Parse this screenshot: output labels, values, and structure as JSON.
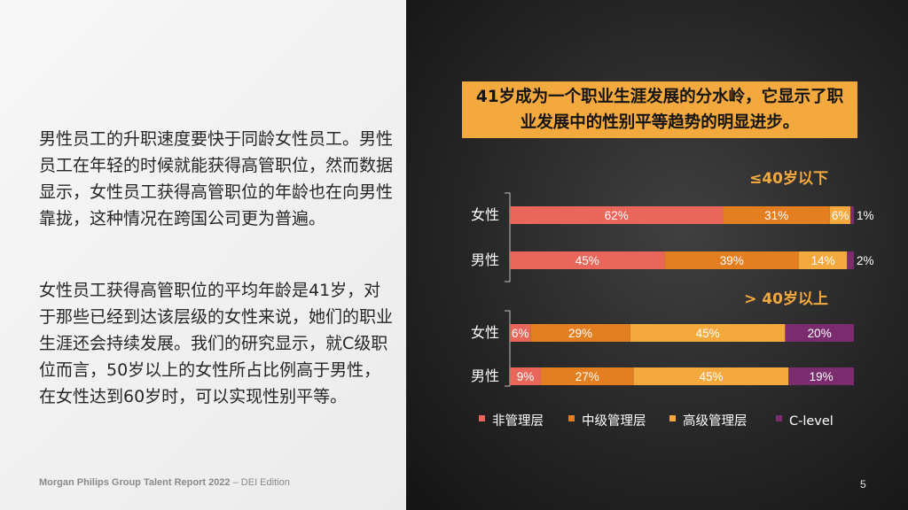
{
  "left": {
    "paragraph1": "男性员工的升职速度要快于同龄女性员工。男性员工在年轻的时候就能获得高管职位，然而数据显示，女性员工获得高管职位的年龄也在向男性靠拢，这种情况在跨国公司更为普遍。",
    "paragraph2": "女性员工获得高管职位的平均年龄是41岁，对于那些已经到达该层级的女性来说，她们的职业生涯还会持续发展。我们的研究显示，就C级职位而言，50岁以上的女性所占比例高于男性，在女性达到60岁时，可以实现性别平等。",
    "footer_bold": "Morgan Philips Group Talent Report 2022",
    "footer_normal": " – DEI Edition"
  },
  "callout": "41岁成为一个职业生涯发展的分水岭，它显示了职业发展中的性别平等趋势的明显进步。",
  "page_number": "5",
  "colors": {
    "left_bg": "#efefef",
    "right_bg": "#2b2b2b",
    "accent_orange": "#f4a93f",
    "group_title": "#f4a93f"
  },
  "chart_data": {
    "type": "bar",
    "orientation": "horizontal",
    "stacked": true,
    "value_unit": "%",
    "series": [
      {
        "name": "非管理层",
        "color": "#e8675a"
      },
      {
        "name": "中级管理层",
        "color": "#e37f21"
      },
      {
        "name": "高级管理层",
        "color": "#f4a93f"
      },
      {
        "name": "C-level",
        "color": "#7b2c6f"
      }
    ],
    "groups": [
      {
        "title": "≤40岁以下",
        "bars": [
          {
            "label": "女性",
            "values": [
              62,
              31,
              6,
              1
            ]
          },
          {
            "label": "男性",
            "values": [
              45,
              39,
              14,
              2
            ]
          }
        ]
      },
      {
        "title": "> 40岁以上",
        "bars": [
          {
            "label": "女性",
            "values": [
              6,
              29,
              45,
              20
            ]
          },
          {
            "label": "男性",
            "values": [
              9,
              27,
              45,
              19
            ]
          }
        ]
      }
    ],
    "legend_position": "bottom"
  }
}
